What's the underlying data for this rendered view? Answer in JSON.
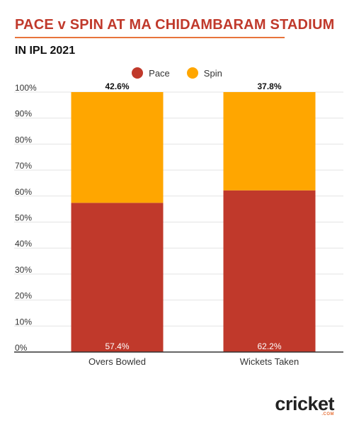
{
  "header": {
    "title": "PACE v SPIN AT MA CHIDAMBARAM STADIUM",
    "subtitle": "IN IPL 2021"
  },
  "brand": {
    "name": "cricket",
    "suffix": ".COM"
  },
  "chart_data": {
    "type": "bar",
    "stacked": true,
    "categories": [
      "Overs Bowled",
      "Wickets Taken"
    ],
    "series": [
      {
        "name": "Pace",
        "values": [
          57.4,
          62.2
        ],
        "labels": [
          "57.4%",
          "62.2%"
        ],
        "color": "#c0392b"
      },
      {
        "name": "Spin",
        "values": [
          42.6,
          37.8
        ],
        "labels": [
          "42.6%",
          "37.8%"
        ],
        "color": "#ffa600"
      }
    ],
    "title": "PACE v SPIN AT MA CHIDAMBARAM STADIUM",
    "subtitle": "IN IPL 2021",
    "xlabel": "",
    "ylabel": "",
    "ylim": [
      0,
      100
    ],
    "yticks": [
      0,
      10,
      20,
      30,
      40,
      50,
      60,
      70,
      80,
      90,
      100
    ],
    "ytick_labels": [
      "0%",
      "10%",
      "20%",
      "30%",
      "40%",
      "50%",
      "60%",
      "70%",
      "80%",
      "90%",
      "100%"
    ],
    "grid": true,
    "legend": "top-center"
  }
}
